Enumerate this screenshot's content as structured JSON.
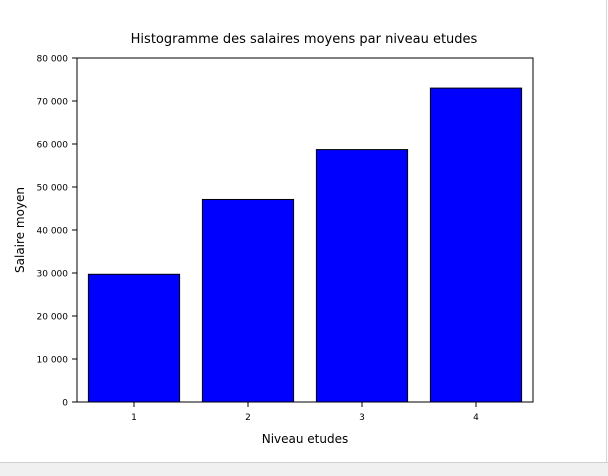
{
  "chart_data": {
    "type": "bar",
    "title": "Histogramme des salaires moyens par niveau etudes",
    "xlabel": "Niveau etudes",
    "ylabel": "Salaire moyen",
    "categories": [
      "1",
      "2",
      "3",
      "4"
    ],
    "values": [
      29700,
      47100,
      58700,
      73000
    ],
    "ylim": [
      0,
      80000
    ],
    "yticks": [
      {
        "value": 0,
        "label": "0"
      },
      {
        "value": 10000,
        "label": "10 000"
      },
      {
        "value": 20000,
        "label": "20 000"
      },
      {
        "value": 30000,
        "label": "30 000"
      },
      {
        "value": 40000,
        "label": "40 000"
      },
      {
        "value": 50000,
        "label": "50 000"
      },
      {
        "value": 60000,
        "label": "60 000"
      },
      {
        "value": 70000,
        "label": "70 000"
      },
      {
        "value": 80000,
        "label": "80 000"
      }
    ],
    "bar_color": "#0000ff",
    "grid": false,
    "legend": "none"
  }
}
